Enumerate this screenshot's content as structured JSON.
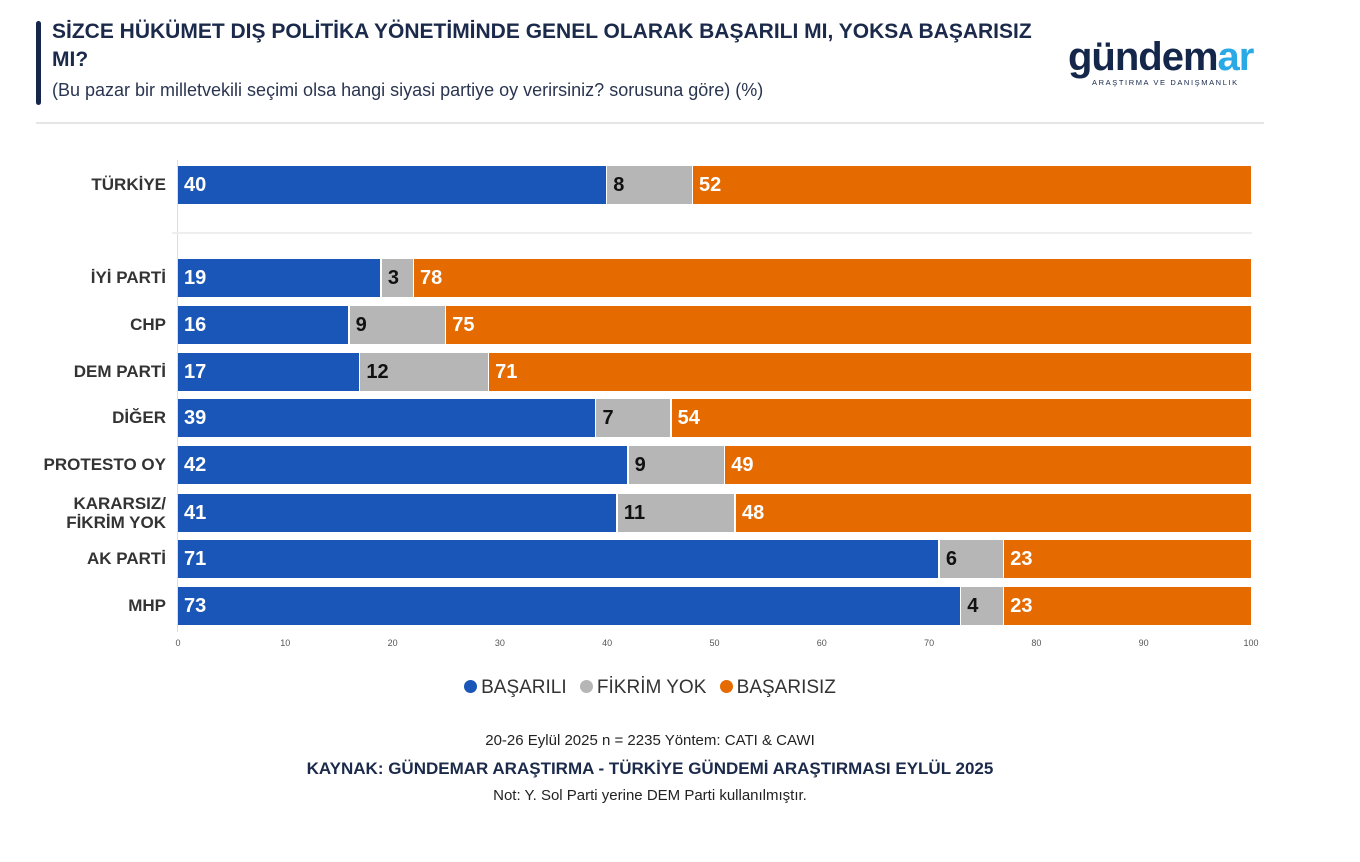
{
  "header": {
    "title": "SİZCE HÜKÜMET DIŞ POLİTİKA YÖNETİMİNDE GENEL OLARAK BAŞARILI MI, YOKSA BAŞARISIZ MI?",
    "subtitle": "(Bu pazar bir milletvekili seçimi olsa hangi siyasi partiye oy verirsiniz? sorusuna göre) (%)",
    "logo_main": "gündem",
    "logo_accent": "ar",
    "logo_sub": "ARAŞTIRMA VE DANIŞMANLIK"
  },
  "chart_data": {
    "type": "bar",
    "orientation": "horizontal-stacked",
    "categories": [
      "TÜRKİYE",
      "İYİ PARTİ",
      "CHP",
      "DEM PARTİ",
      "DİĞER",
      "PROTESTO OY",
      "KARARSIZ/ FİKRİM YOK",
      "AK PARTİ",
      "MHP"
    ],
    "series": [
      {
        "name": "BAŞARILI",
        "color": "#1a56b8",
        "values": [
          40,
          19,
          16,
          17,
          39,
          42,
          41,
          71,
          73
        ]
      },
      {
        "name": "FİKRİM YOK",
        "color": "#b6b6b6",
        "values": [
          8,
          3,
          9,
          12,
          7,
          9,
          11,
          6,
          4
        ]
      },
      {
        "name": "BAŞARISIZ",
        "color": "#e56a00",
        "values": [
          52,
          78,
          75,
          71,
          54,
          49,
          48,
          23,
          23
        ]
      }
    ],
    "xlim": [
      0,
      100
    ],
    "xticks": [
      "0",
      "10",
      "20",
      "30",
      "40",
      "50",
      "60",
      "70",
      "80",
      "90",
      "100"
    ],
    "legend": "bottom",
    "grid": false
  },
  "footer": {
    "line1": "20-26 Eylül 2025 n = 2235 Yöntem: CATI & CAWI",
    "line2": "KAYNAK: GÜNDEMAR ARAŞTIRMA - TÜRKİYE GÜNDEMİ ARAŞTIRMASI EYLÜL 2025",
    "line3": "Not: Y. Sol Parti yerine DEM Parti kullanılmıştır."
  }
}
